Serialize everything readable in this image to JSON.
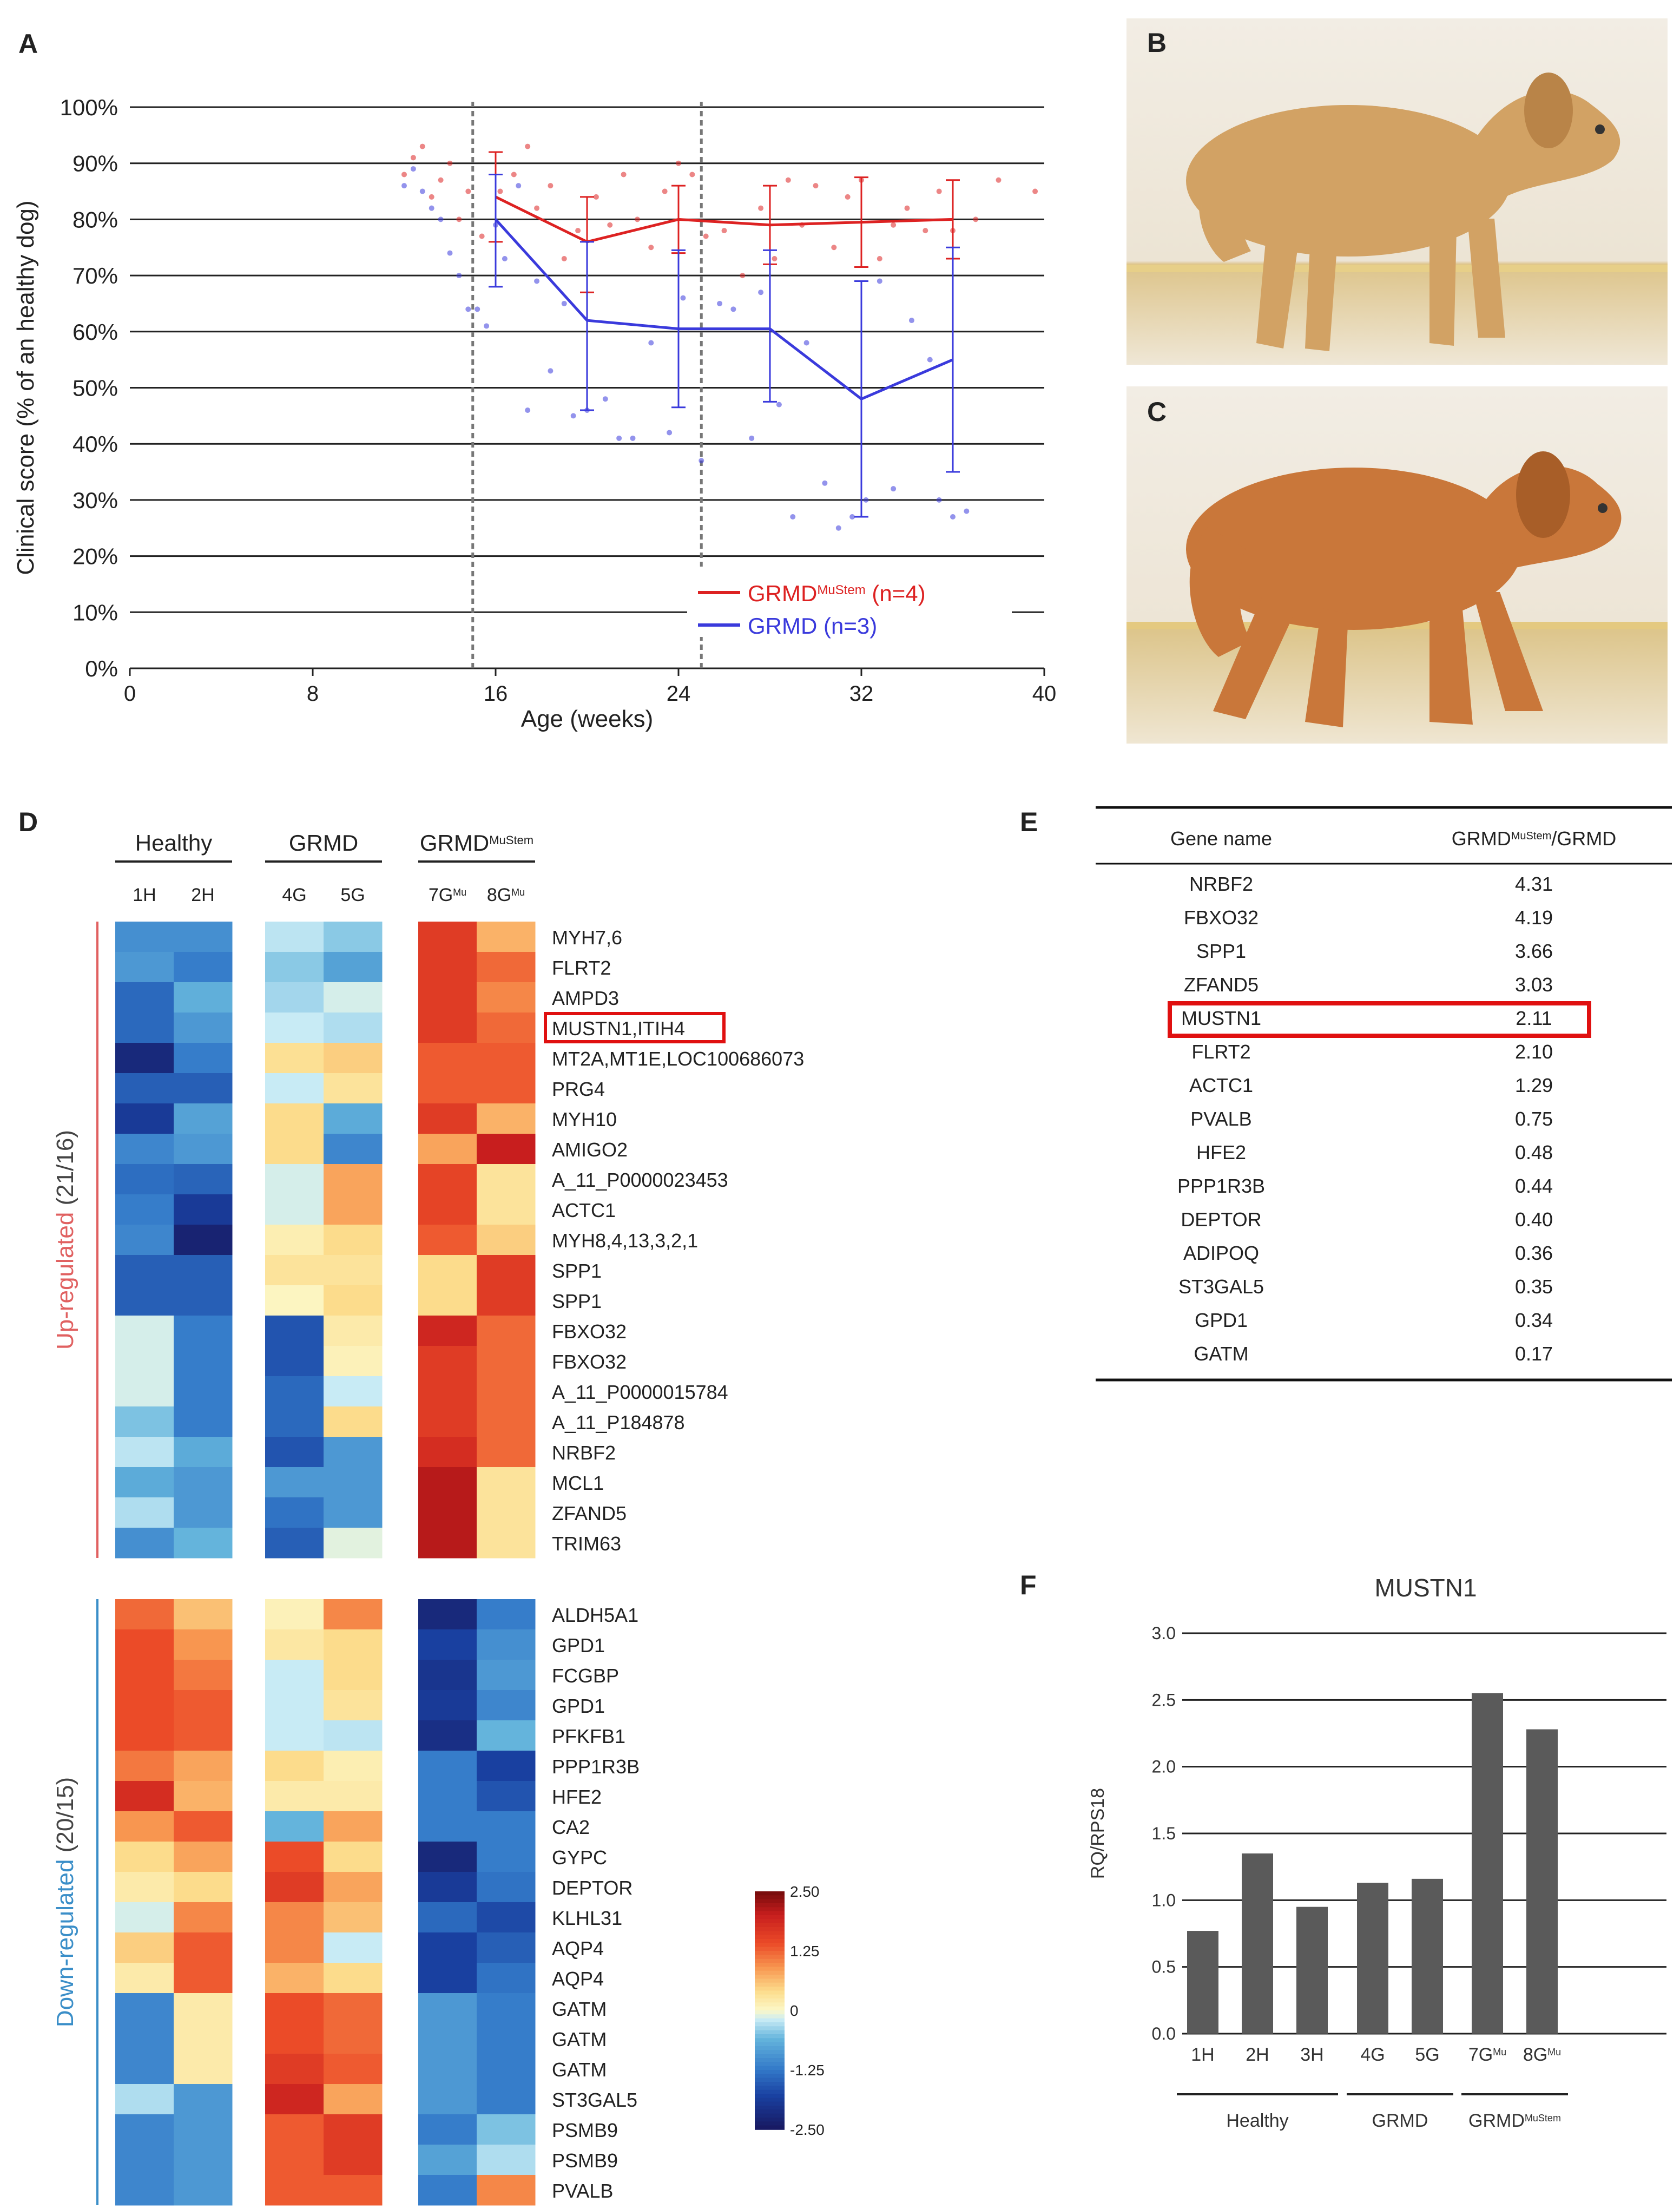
{
  "panel_labels": {
    "A": "A",
    "B": "B",
    "C": "C",
    "D": "D",
    "E": "E",
    "F": "F"
  },
  "chart_data": [
    {
      "type": "line",
      "panel": "A",
      "title": "",
      "xlabel": "Age (weeks)",
      "ylabel": "Clinical score (% of an healthy dog)",
      "xlim": [
        0,
        40
      ],
      "ylim": [
        0,
        100
      ],
      "x_ticks": [
        "0",
        "8",
        "16",
        "24",
        "32",
        "40"
      ],
      "x_tick_values": [
        0,
        8,
        16,
        24,
        32,
        40
      ],
      "y_ticks": [
        "0%",
        "10%",
        "20%",
        "30%",
        "40%",
        "50%",
        "60%",
        "70%",
        "80%",
        "90%",
        "100%"
      ],
      "y_tick_values": [
        0,
        10,
        20,
        30,
        40,
        50,
        60,
        70,
        80,
        90,
        100
      ],
      "vlines": [
        15,
        25
      ],
      "legend_position": "bottom-right",
      "series": [
        {
          "name": "GRMD",
          "name_sup": "MuStem",
          "name_suffix": " (n=4)",
          "color": "#dd2222",
          "x": [
            16,
            20,
            24,
            28,
            32,
            36
          ],
          "y": [
            84,
            76,
            80,
            79,
            79.5,
            80
          ],
          "err_low": [
            8,
            9,
            6,
            7,
            8,
            7
          ],
          "err_high": [
            8,
            8,
            6,
            7,
            8,
            7
          ],
          "scatter_x": [
            12,
            12.4,
            12.8,
            13.2,
            13.6,
            14,
            14.4,
            14.8,
            15.4,
            16.2,
            16.8,
            17.4,
            17.8,
            18.4,
            19,
            19.6,
            20.4,
            21,
            21.6,
            22.2,
            22.8,
            23.4,
            24,
            24.6,
            25.2,
            26,
            26.8,
            27.6,
            28.2,
            28.8,
            29.4,
            30,
            30.8,
            31.4,
            32,
            32.8,
            33.4,
            34,
            34.8,
            35.4,
            36,
            37,
            38,
            39.6
          ],
          "scatter_y": [
            88,
            91,
            93,
            84,
            87,
            90,
            80,
            85,
            77,
            85,
            88,
            93,
            82,
            86,
            73,
            78,
            84,
            79,
            88,
            80,
            75,
            85,
            90,
            88,
            77,
            78,
            70,
            82,
            73,
            87,
            79,
            86,
            75,
            84,
            87,
            73,
            79,
            82,
            78,
            85,
            78,
            80,
            87,
            85
          ]
        },
        {
          "name": "GRMD",
          "name_sup": "",
          "name_suffix": " (n=3)",
          "color": "#3a3adc",
          "x": [
            16,
            20,
            24,
            28,
            32,
            36
          ],
          "y": [
            80,
            62,
            60.5,
            60.5,
            48,
            55
          ],
          "err_low": [
            12,
            16,
            14,
            13,
            21,
            20
          ],
          "err_high": [
            8,
            14,
            14,
            14,
            21,
            20
          ],
          "scatter_x": [
            12,
            12.4,
            12.8,
            13.2,
            13.6,
            14,
            14.4,
            14.8,
            15.2,
            15.6,
            16,
            16.4,
            17,
            17.4,
            17.8,
            18.4,
            19,
            19.4,
            20,
            20.8,
            21.4,
            22,
            22.8,
            23.6,
            24.2,
            25,
            25.8,
            26.4,
            27.2,
            27.6,
            28.4,
            29,
            29.6,
            30.4,
            31,
            31.6,
            32.2,
            32.8,
            33.4,
            34.2,
            35,
            35.4,
            36,
            36.6
          ],
          "scatter_y": [
            86,
            89,
            85,
            82,
            80,
            74,
            70,
            64,
            64,
            61,
            79,
            73,
            86,
            46,
            69,
            53,
            65,
            45,
            46,
            48,
            41,
            41,
            58,
            42,
            66,
            37,
            65,
            64,
            41,
            67,
            47,
            27,
            58,
            33,
            25,
            27,
            30,
            69,
            32,
            62,
            55,
            30,
            27,
            28
          ]
        }
      ]
    },
    {
      "type": "heatmap",
      "panel": "D",
      "title": "",
      "groups": [
        {
          "label": "Healthy",
          "sup": "",
          "columns": [
            {
              "label": "1H",
              "sup": ""
            },
            {
              "label": "2H",
              "sup": ""
            }
          ]
        },
        {
          "label": "GRMD",
          "sup": "",
          "columns": [
            {
              "label": "4G",
              "sup": ""
            },
            {
              "label": "5G",
              "sup": ""
            }
          ]
        },
        {
          "label": "GRMD",
          "sup": "MuStem",
          "columns": [
            {
              "label": "7G",
              "sup": "Mu"
            },
            {
              "label": "8G",
              "sup": "Mu"
            }
          ]
        }
      ],
      "sections": [
        {
          "label": "Up-regulated",
          "count": " (21/16)",
          "color": "#e06060",
          "rows": [
            "MYH7,6",
            "FLRT2",
            "AMPD3",
            "MUSTN1,ITIH4",
            "MT2A,MT1E,LOC100686073",
            "PRG4",
            "MYH10",
            "AMIGO2",
            "A_11_P0000023453",
            "ACTC1",
            "MYH8,4,13,3,2,1",
            "SPP1",
            "SPP1",
            "FBXO32",
            "FBXO32",
            "A_11_P0000015784",
            "A_11_P184878",
            "NRBF2",
            "MCL1",
            "ZFAND5",
            "TRIM63"
          ],
          "values": [
            [
              -1.0,
              -1.0,
              -0.25,
              -0.45,
              1.6,
              0.7
            ],
            [
              -0.9,
              -1.2,
              -0.45,
              -0.8,
              1.6,
              1.2
            ],
            [
              -1.4,
              -0.65,
              -0.35,
              -0.15,
              1.6,
              1.0
            ],
            [
              -1.4,
              -0.9,
              -0.2,
              -0.3,
              1.6,
              1.2
            ],
            [
              -2.2,
              -1.2,
              0.35,
              0.5,
              1.3,
              1.3
            ],
            [
              -1.5,
              -1.5,
              -0.2,
              0.3,
              1.3,
              1.3
            ],
            [
              -1.9,
              -0.8,
              0.4,
              -0.7,
              1.6,
              0.7
            ],
            [
              -1.1,
              -0.9,
              0.4,
              -1.1,
              0.8,
              2.0
            ],
            [
              -1.35,
              -1.45,
              -0.15,
              0.8,
              1.5,
              0.3
            ],
            [
              -1.2,
              -1.9,
              -0.15,
              0.8,
              1.5,
              0.3
            ],
            [
              -1.1,
              -2.3,
              0.15,
              0.4,
              1.3,
              0.5
            ],
            [
              -1.5,
              -1.5,
              0.3,
              0.3,
              0.4,
              1.6
            ],
            [
              -1.5,
              -1.5,
              0.05,
              0.4,
              0.4,
              1.6
            ],
            [
              -0.15,
              -1.2,
              -1.6,
              0.2,
              1.9,
              1.2
            ],
            [
              -0.15,
              -1.2,
              -1.6,
              0.1,
              1.6,
              1.2
            ],
            [
              -0.15,
              -1.2,
              -1.4,
              -0.2,
              1.6,
              1.2
            ],
            [
              -0.5,
              -1.2,
              -1.4,
              0.4,
              1.6,
              1.2
            ],
            [
              -0.25,
              -0.7,
              -1.6,
              -0.9,
              1.8,
              1.2
            ],
            [
              -0.7,
              -0.9,
              -0.9,
              -0.9,
              2.1,
              0.3
            ],
            [
              -0.3,
              -0.9,
              -1.3,
              -0.9,
              2.1,
              0.3
            ],
            [
              -1.0,
              -0.6,
              -1.5,
              -0.1,
              2.1,
              0.3
            ]
          ]
        },
        {
          "label": "Down-regulated",
          "count": " (20/15)",
          "color": "#3a8ec8",
          "rows": [
            "ALDH5A1",
            "GPD1",
            "FCGBP",
            "GPD1",
            "PFKFB1",
            "PPP1R3B",
            "HFE2",
            "CA2",
            "GYPC",
            "DEPTOR",
            "KLHL31",
            "AQP4",
            "AQP4",
            "GATM",
            "GATM",
            "GATM",
            "ST3GAL5",
            "PSMB9",
            "PSMB9",
            "PVALB"
          ],
          "values": [
            [
              1.2,
              0.6,
              0.1,
              1.0,
              -2.2,
              -1.2
            ],
            [
              1.4,
              0.9,
              0.25,
              0.4,
              -1.8,
              -1.0
            ],
            [
              1.4,
              1.1,
              -0.2,
              0.4,
              -2.0,
              -0.9
            ],
            [
              1.4,
              1.3,
              -0.2,
              0.3,
              -1.9,
              -1.1
            ],
            [
              1.4,
              1.3,
              -0.2,
              -0.25,
              -2.1,
              -0.6
            ],
            [
              1.1,
              0.8,
              0.4,
              0.15,
              -1.2,
              -1.8
            ],
            [
              1.8,
              0.7,
              0.2,
              0.2,
              -1.2,
              -1.6
            ],
            [
              0.9,
              1.3,
              -0.6,
              0.8,
              -1.2,
              -1.2
            ],
            [
              0.4,
              0.8,
              1.4,
              0.4,
              -2.2,
              -1.2
            ],
            [
              0.2,
              0.4,
              1.6,
              0.8,
              -1.9,
              -1.3
            ],
            [
              -0.15,
              1.0,
              1.0,
              0.6,
              -1.4,
              -1.7
            ],
            [
              0.5,
              1.3,
              1.0,
              -0.2,
              -1.8,
              -1.5
            ],
            [
              0.2,
              1.3,
              0.7,
              0.4,
              -1.8,
              -1.3
            ],
            [
              -1.1,
              0.2,
              1.4,
              1.2,
              -0.9,
              -1.2
            ],
            [
              -1.1,
              0.2,
              1.4,
              1.2,
              -0.9,
              -1.2
            ],
            [
              -1.1,
              0.2,
              1.6,
              1.3,
              -0.9,
              -1.2
            ],
            [
              -0.3,
              -0.9,
              1.9,
              0.8,
              -0.9,
              -1.2
            ],
            [
              -1.1,
              -0.9,
              1.3,
              1.6,
              -1.2,
              -0.5
            ],
            [
              -1.1,
              -0.9,
              1.3,
              1.6,
              -0.8,
              -0.3
            ],
            [
              -1.1,
              -0.9,
              1.3,
              1.3,
              -1.2,
              1.0
            ]
          ]
        }
      ],
      "highlight_row": "MUSTN1,ITIH4",
      "colorbar": {
        "min": -2.5,
        "max": 2.5,
        "ticks": [
          "2.50",
          "1.25",
          "0",
          "-1.25",
          "-2.50"
        ]
      }
    },
    {
      "type": "table",
      "panel": "E",
      "columns": [
        "Gene name",
        "GRMD/GRMD"
      ],
      "header_sup": "MuStem",
      "rows": [
        [
          "NRBF2",
          "4.31"
        ],
        [
          "FBXO32",
          "4.19"
        ],
        [
          "SPP1",
          "3.66"
        ],
        [
          "ZFAND5",
          "3.03"
        ],
        [
          "MUSTN1",
          "2.11"
        ],
        [
          "FLRT2",
          "2.10"
        ],
        [
          "ACTC1",
          "1.29"
        ],
        [
          "PVALB",
          "0.75"
        ],
        [
          "HFE2",
          "0.48"
        ],
        [
          "PPP1R3B",
          "0.44"
        ],
        [
          "DEPTOR",
          "0.40"
        ],
        [
          "ADIPOQ",
          "0.36"
        ],
        [
          "ST3GAL5",
          "0.35"
        ],
        [
          "GPD1",
          "0.34"
        ],
        [
          "GATM",
          "0.17"
        ]
      ],
      "highlight_row": "MUSTN1"
    },
    {
      "type": "bar",
      "panel": "F",
      "title": "MUSTN1",
      "ylabel": "RQ/RPS18",
      "xlabel": "",
      "ylim": [
        0,
        3.0
      ],
      "y_ticks": [
        "0.0",
        "0.5",
        "1.0",
        "1.5",
        "2.0",
        "2.5",
        "3.0"
      ],
      "categories": [
        "1H",
        "2H",
        "3H",
        "4G",
        "5G",
        "7G",
        "8G"
      ],
      "category_sup": [
        "",
        "",
        "",
        "",
        "",
        "Mu",
        "Mu"
      ],
      "values": [
        0.77,
        1.35,
        0.95,
        1.13,
        1.16,
        2.55,
        2.28
      ],
      "bar_color": "#5a5a5a",
      "groups": [
        {
          "label": "Healthy",
          "sup": "",
          "from": 0,
          "to": 2
        },
        {
          "label": "GRMD",
          "sup": "",
          "from": 3,
          "to": 4
        },
        {
          "label": "GRMD",
          "sup": "MuStem",
          "from": 5,
          "to": 6
        }
      ]
    }
  ]
}
